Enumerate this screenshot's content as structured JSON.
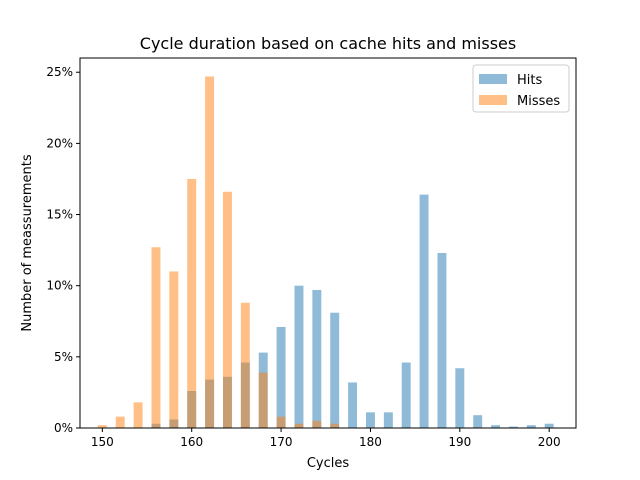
{
  "chart_data": {
    "type": "bar",
    "title": "Cycle duration based on cache hits and misses",
    "xlabel": "Cycles",
    "ylabel": "Number of meassurements",
    "xlim": [
      147.5,
      203.0
    ],
    "ylim": [
      0,
      26
    ],
    "x_ticks": [
      150,
      160,
      170,
      180,
      190,
      200
    ],
    "y_ticks": [
      0,
      5,
      10,
      15,
      20,
      25
    ],
    "y_tick_labels": [
      "0%",
      "5%",
      "10%",
      "15%",
      "20%",
      "25%"
    ],
    "bar_width": 1.0,
    "legend_position": "top-right",
    "grid": false,
    "series": [
      {
        "name": "Hits",
        "color": "#1f77b4",
        "alpha": 0.5,
        "x": [
          150,
          152,
          154,
          156,
          158,
          160,
          162,
          164,
          166,
          168,
          170,
          172,
          174,
          176,
          178,
          180,
          182,
          184,
          186,
          188,
          190,
          192,
          194,
          196,
          198,
          200
        ],
        "values": [
          0,
          0,
          0,
          0.3,
          0.6,
          2.6,
          3.4,
          3.6,
          4.6,
          5.3,
          7.1,
          10.0,
          9.7,
          8.1,
          3.2,
          1.1,
          1.1,
          4.6,
          16.4,
          12.3,
          4.2,
          0.9,
          0.2,
          0.1,
          0.2,
          0.3
        ]
      },
      {
        "name": "Misses",
        "color": "#ff7f0e",
        "alpha": 0.5,
        "x": [
          150,
          152,
          154,
          156,
          158,
          160,
          162,
          164,
          166,
          168,
          170,
          172,
          174,
          176,
          178,
          180,
          182,
          184,
          186,
          188,
          190,
          192,
          194,
          196,
          198,
          200
        ],
        "values": [
          0.2,
          0.8,
          1.8,
          12.7,
          11.0,
          17.5,
          24.7,
          16.6,
          8.8,
          3.9,
          0.8,
          0.3,
          0.5,
          0.3,
          0,
          0,
          0,
          0,
          0,
          0,
          0,
          0,
          0,
          0,
          0,
          0
        ]
      }
    ]
  }
}
